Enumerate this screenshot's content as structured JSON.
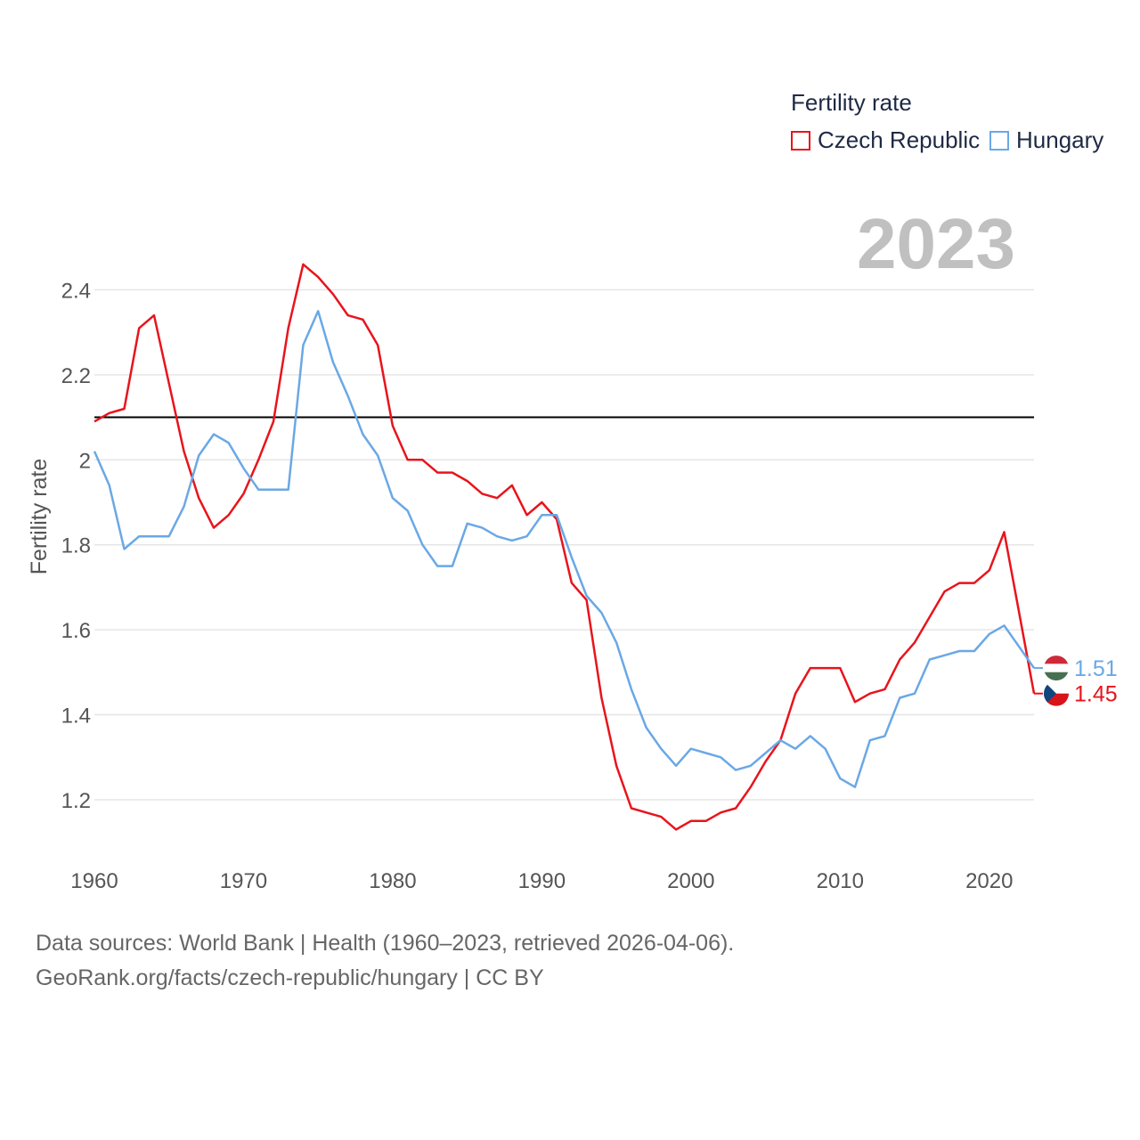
{
  "legend": {
    "title": "Fertility rate",
    "series_labels": [
      "Czech Republic",
      "Hungary"
    ]
  },
  "year_label": "2023",
  "footer": {
    "line1": "Data sources: World Bank | Health (1960–2023, retrieved 2026-04-06).",
    "line2": "GeoRank.org/facts/czech-republic/hungary | CC BY"
  },
  "colors": {
    "czech": "#e8141c",
    "hungary": "#6aa8e6",
    "reference": "#000000",
    "grid": "#e6e6e6",
    "text": "#555555"
  },
  "chart_data": {
    "type": "line",
    "ylabel": "Fertility rate",
    "xlabel": "",
    "xlim": [
      1960,
      2023
    ],
    "ylim": [
      1.07,
      2.6
    ],
    "yticks": [
      1.2,
      1.4,
      1.6,
      1.8,
      2,
      2.2,
      2.4
    ],
    "ytick_labels": [
      "1.2",
      "1.4",
      "1.6",
      "1.8",
      "2",
      "2.2",
      "2.4"
    ],
    "xticks": [
      1960,
      1970,
      1980,
      1990,
      2000,
      2010,
      2020
    ],
    "xtick_labels": [
      "1960",
      "1970",
      "1980",
      "1990",
      "2000",
      "2010",
      "2020"
    ],
    "reference_line": 2.1,
    "x": [
      1960,
      1961,
      1962,
      1963,
      1964,
      1965,
      1966,
      1967,
      1968,
      1969,
      1970,
      1971,
      1972,
      1973,
      1974,
      1975,
      1976,
      1977,
      1978,
      1979,
      1980,
      1981,
      1982,
      1983,
      1984,
      1985,
      1986,
      1987,
      1988,
      1989,
      1990,
      1991,
      1992,
      1993,
      1994,
      1995,
      1996,
      1997,
      1998,
      1999,
      2000,
      2001,
      2002,
      2003,
      2004,
      2005,
      2006,
      2007,
      2008,
      2009,
      2010,
      2011,
      2012,
      2013,
      2014,
      2015,
      2016,
      2017,
      2018,
      2019,
      2020,
      2021,
      2022,
      2023
    ],
    "series": [
      {
        "name": "Czech Republic",
        "end_label": "1.45",
        "values": [
          2.09,
          2.11,
          2.12,
          2.31,
          2.34,
          2.18,
          2.02,
          1.91,
          1.84,
          1.87,
          1.92,
          2.0,
          2.09,
          2.31,
          2.46,
          2.43,
          2.39,
          2.34,
          2.33,
          2.27,
          2.08,
          2.0,
          2.0,
          1.97,
          1.97,
          1.95,
          1.92,
          1.91,
          1.94,
          1.87,
          1.9,
          1.86,
          1.71,
          1.67,
          1.44,
          1.28,
          1.18,
          1.17,
          1.16,
          1.13,
          1.15,
          1.15,
          1.17,
          1.18,
          1.23,
          1.29,
          1.34,
          1.45,
          1.51,
          1.51,
          1.51,
          1.43,
          1.45,
          1.46,
          1.53,
          1.57,
          1.63,
          1.69,
          1.71,
          1.71,
          1.74,
          1.83,
          1.64,
          1.45
        ]
      },
      {
        "name": "Hungary",
        "end_label": "1.51",
        "values": [
          2.02,
          1.94,
          1.79,
          1.82,
          1.82,
          1.82,
          1.89,
          2.01,
          2.06,
          2.04,
          1.98,
          1.93,
          1.93,
          1.93,
          2.27,
          2.35,
          2.23,
          2.15,
          2.06,
          2.01,
          1.91,
          1.88,
          1.8,
          1.75,
          1.75,
          1.85,
          1.84,
          1.82,
          1.81,
          1.82,
          1.87,
          1.87,
          1.77,
          1.68,
          1.64,
          1.57,
          1.46,
          1.37,
          1.32,
          1.28,
          1.32,
          1.31,
          1.3,
          1.27,
          1.28,
          1.31,
          1.34,
          1.32,
          1.35,
          1.32,
          1.25,
          1.23,
          1.34,
          1.35,
          1.44,
          1.45,
          1.53,
          1.54,
          1.55,
          1.55,
          1.59,
          1.61,
          1.56,
          1.51
        ]
      }
    ]
  }
}
